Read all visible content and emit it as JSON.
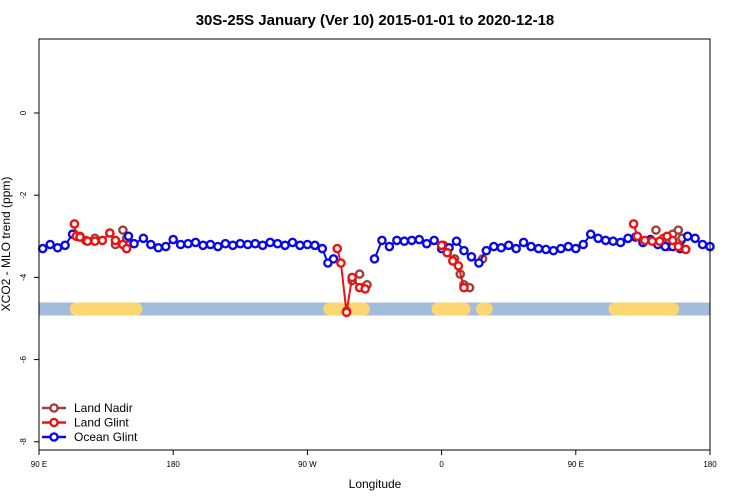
{
  "chart_data": {
    "type": "scatter",
    "title": "30S-25S January (Ver 10)   2015-01-01 to 2020-12-18",
    "xlabel": "Longitude",
    "ylabel": "XCO2 - MLO trend (ppm)",
    "xlim": [
      90,
      450
    ],
    "ylim": [
      -8.2,
      1.8
    ],
    "x_ticks": [
      {
        "value": 90,
        "label": "90 E"
      },
      {
        "value": 162,
        "label": "180"
      },
      {
        "value": 234,
        "label": "90 W"
      },
      {
        "value": 306,
        "label": "0"
      },
      {
        "value": 378,
        "label": "90 E"
      },
      {
        "value": 450,
        "label": "180"
      }
    ],
    "y_ticks": [
      {
        "value": 0,
        "label": "0"
      },
      {
        "value": -2,
        "label": "-2"
      },
      {
        "value": -4,
        "label": "-4"
      },
      {
        "value": -6,
        "label": "-6"
      },
      {
        "value": -8,
        "label": "-8"
      }
    ],
    "surface_band": {
      "y": -4.77,
      "ocean_color": "#a4bcdc",
      "land_color": "#fcd670",
      "land_segments": [
        [
          110,
          142
        ],
        [
          246,
          264
        ],
        [
          304,
          318
        ],
        [
          328,
          330
        ],
        [
          399,
          430
        ]
      ]
    },
    "series": [
      {
        "name": "Land Nadir",
        "color": "#a0403a",
        "marker_fill": "#ffffff",
        "connect": false,
        "points": [
          [
            109,
            -2.95
          ],
          [
            112,
            -3.0
          ],
          [
            115,
            -3.1
          ],
          [
            120,
            -3.05
          ],
          [
            128,
            -2.92
          ],
          [
            131,
            -3.2
          ],
          [
            135,
            -2.85
          ],
          [
            137,
            -3.05
          ],
          [
            255,
            -4.82
          ],
          [
            258,
            -4.08
          ],
          [
            262,
            -3.92
          ],
          [
            264,
            -4.25
          ],
          [
            266,
            -4.18
          ],
          [
            307,
            -3.22
          ],
          [
            313,
            -3.55
          ],
          [
            316,
            -3.92
          ],
          [
            318,
            -4.18
          ],
          [
            321,
            -4.25
          ],
          [
            328,
            -3.55
          ],
          [
            421,
            -2.85
          ],
          [
            425,
            -3.05
          ],
          [
            428,
            -3.25
          ],
          [
            430,
            -2.95
          ],
          [
            433,
            -2.85
          ],
          [
            435,
            -3.05
          ]
        ]
      },
      {
        "name": "Land Glint",
        "color": "#ee1111",
        "marker_fill": "#ffffff",
        "connect": true,
        "points": [
          [
            109,
            -2.7
          ],
          [
            110,
            -3.0
          ],
          [
            112,
            -3.02
          ],
          [
            116,
            -3.12
          ],
          [
            120,
            -3.12
          ],
          [
            124,
            -3.1
          ],
          [
            128,
            -2.92
          ],
          [
            131,
            -3.1
          ],
          [
            135,
            -3.2
          ],
          [
            137,
            -3.3
          ],
          [
            250,
            -3.3
          ],
          [
            252,
            -3.65
          ],
          [
            255,
            -4.85
          ],
          [
            258,
            -4.0
          ],
          [
            262,
            -4.25
          ],
          [
            265,
            -4.28
          ],
          [
            306,
            -3.22
          ],
          [
            309,
            -3.4
          ],
          [
            312,
            -3.6
          ],
          [
            315,
            -3.72
          ],
          [
            318,
            -4.25
          ],
          [
            409,
            -2.7
          ],
          [
            411,
            -3.0
          ],
          [
            415,
            -3.1
          ],
          [
            419,
            -3.12
          ],
          [
            423,
            -3.12
          ],
          [
            427,
            -3.0
          ],
          [
            430,
            -3.1
          ],
          [
            433,
            -3.25
          ],
          [
            437,
            -3.32
          ]
        ]
      },
      {
        "name": "Ocean Glint",
        "color": "#0a0ae8",
        "marker_fill": "#ffffff",
        "connect": true,
        "points": [
          [
            92,
            -3.3
          ],
          [
            96,
            -3.2
          ],
          [
            100,
            -3.28
          ],
          [
            104,
            -3.22
          ],
          [
            108,
            -2.95
          ],
          [
            138,
            -3.0
          ],
          [
            141,
            -3.18
          ],
          [
            146,
            -3.05
          ],
          [
            150,
            -3.2
          ],
          [
            154,
            -3.28
          ],
          [
            158,
            -3.25
          ],
          [
            162,
            -3.08
          ],
          [
            166,
            -3.2
          ],
          [
            170,
            -3.18
          ],
          [
            174,
            -3.15
          ],
          [
            178,
            -3.22
          ],
          [
            182,
            -3.2
          ],
          [
            186,
            -3.25
          ],
          [
            190,
            -3.18
          ],
          [
            194,
            -3.22
          ],
          [
            198,
            -3.18
          ],
          [
            202,
            -3.2
          ],
          [
            206,
            -3.18
          ],
          [
            210,
            -3.22
          ],
          [
            214,
            -3.15
          ],
          [
            218,
            -3.18
          ],
          [
            222,
            -3.22
          ],
          [
            226,
            -3.15
          ],
          [
            230,
            -3.22
          ],
          [
            234,
            -3.2
          ],
          [
            238,
            -3.22
          ],
          [
            242,
            -3.3
          ],
          [
            245,
            -3.65
          ],
          [
            248,
            -3.55
          ],
          [
            270,
            -3.55
          ],
          [
            274,
            -3.1
          ],
          [
            278,
            -3.25
          ],
          [
            282,
            -3.1
          ],
          [
            286,
            -3.12
          ],
          [
            290,
            -3.1
          ],
          [
            294,
            -3.08
          ],
          [
            298,
            -3.18
          ],
          [
            302,
            -3.1
          ],
          [
            306,
            -3.3
          ],
          [
            310,
            -3.28
          ],
          [
            314,
            -3.12
          ],
          [
            318,
            -3.35
          ],
          [
            322,
            -3.5
          ],
          [
            326,
            -3.65
          ],
          [
            330,
            -3.35
          ],
          [
            334,
            -3.25
          ],
          [
            338,
            -3.28
          ],
          [
            342,
            -3.22
          ],
          [
            346,
            -3.3
          ],
          [
            350,
            -3.15
          ],
          [
            354,
            -3.25
          ],
          [
            358,
            -3.3
          ],
          [
            362,
            -3.32
          ],
          [
            366,
            -3.35
          ],
          [
            370,
            -3.3
          ],
          [
            374,
            -3.25
          ],
          [
            378,
            -3.3
          ],
          [
            382,
            -3.2
          ],
          [
            386,
            -2.95
          ],
          [
            390,
            -3.05
          ],
          [
            394,
            -3.1
          ],
          [
            398,
            -3.12
          ],
          [
            402,
            -3.15
          ],
          [
            406,
            -3.05
          ],
          [
            410,
            -3.02
          ],
          [
            414,
            -3.15
          ],
          [
            418,
            -3.08
          ],
          [
            422,
            -3.2
          ],
          [
            426,
            -3.25
          ],
          [
            430,
            -3.25
          ],
          [
            434,
            -3.3
          ],
          [
            438,
            -3.0
          ],
          [
            442,
            -3.05
          ],
          [
            446,
            -3.2
          ],
          [
            450,
            -3.25
          ]
        ]
      }
    ],
    "legend": {
      "placement": "bottom-left",
      "entries": [
        "Land Nadir",
        "Land Glint",
        "Ocean Glint"
      ]
    }
  }
}
